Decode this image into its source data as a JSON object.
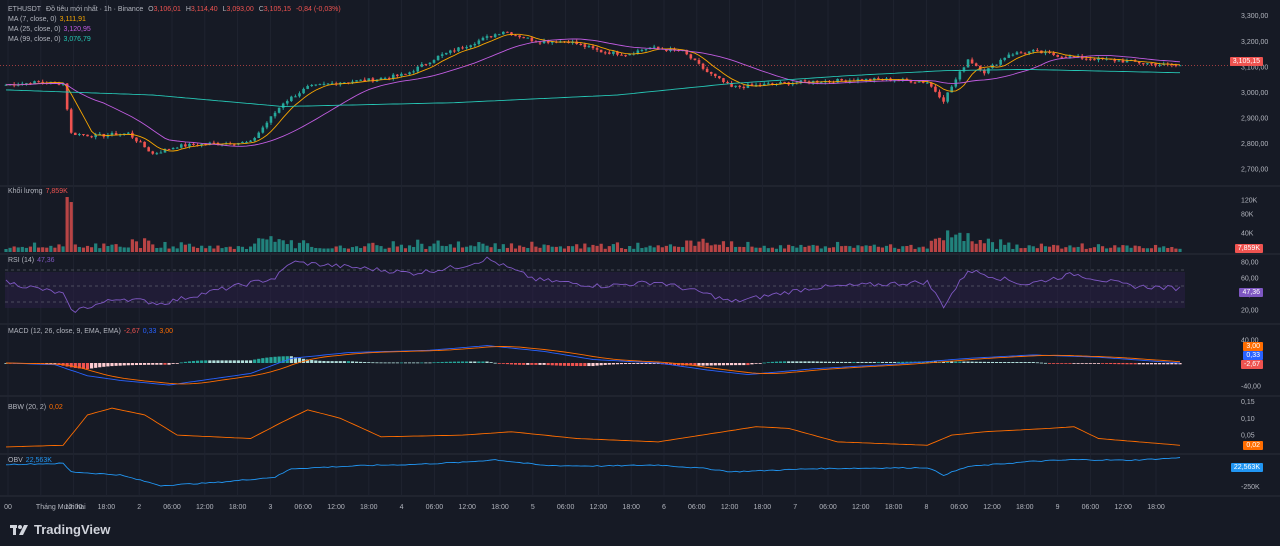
{
  "header": {
    "symbol": "ETHUSDT",
    "interval_text": "Đồ tiêu mới nhất · 1h · Binance",
    "ohlc": [
      {
        "k": "O",
        "v": "3,106,01"
      },
      {
        "k": "H",
        "v": "3,114,40"
      },
      {
        "k": "L",
        "v": "3,093,00"
      },
      {
        "k": "C",
        "v": "3,105,15"
      }
    ],
    "change": "-0,84 (-0,03%)"
  },
  "ma_labels": [
    {
      "name": "MA (7, close, 0)",
      "value": "3,111,91",
      "color": "#f7a600"
    },
    {
      "name": "MA (25, close, 0)",
      "value": "3,120,95",
      "color": "#c05ce0"
    },
    {
      "name": "MA (99, close, 0)",
      "value": "3,076,79",
      "color": "#26c6b5"
    }
  ],
  "volume_label": {
    "name": "Khối lượng",
    "value": "7,859K"
  },
  "rsi_label": {
    "name": "RSI (14)",
    "value": "47,36"
  },
  "macd_label": {
    "name": "MACD (12, 26, close, 9, EMA, EMA)",
    "hist": "-2,67",
    "macd": "0,33",
    "signal": "3,00"
  },
  "bbw_label": {
    "name": "BBW (20, 2)",
    "value": "0,02"
  },
  "obv_label": {
    "name": "OBV",
    "value": "22,563K"
  },
  "axes": {
    "price_ticks": [
      "3,300,00",
      "3,200,00",
      "3,100,00",
      "3,000,00",
      "2,900,00",
      "2,800,00",
      "2,700,00"
    ],
    "volume_ticks": [
      "120K",
      "80K",
      "40K"
    ],
    "rsi_ticks": [
      "80,00",
      "60,00",
      "40,00",
      "20,00"
    ],
    "macd_ticks": [
      "40,00",
      "-40,00"
    ],
    "bbw_ticks": [
      "0,15",
      "0,10",
      "0,05"
    ],
    "obv_ticks": [
      "-250K"
    ],
    "time_ticks": [
      "00",
      "Tháng Mười hai",
      "12:00",
      "18:00",
      "2",
      "06:00",
      "12:00",
      "18:00",
      "3",
      "06:00",
      "12:00",
      "18:00",
      "4",
      "06:00",
      "12:00",
      "18:00",
      "5",
      "06:00",
      "12:00",
      "18:00",
      "6",
      "06:00",
      "12:00",
      "18:00",
      "7",
      "06:00",
      "12:00",
      "18:00",
      "8",
      "06:00",
      "12:00",
      "18:00",
      "9",
      "06:00",
      "12:00",
      "18:00"
    ]
  },
  "tags": {
    "price": "3,105,15",
    "volume": "7,859K",
    "rsi": "47,36",
    "macd_signal": "3,00",
    "macd_line": "0,33",
    "macd_hist": "-2,67",
    "bbw": "0,02",
    "obv": "22,563K"
  },
  "brand": "TradingView",
  "colors": {
    "bg": "#161a25",
    "up": "#26a69a",
    "down": "#ef5350",
    "ma7": "#f7a600",
    "ma25": "#c05ce0",
    "ma99": "#26c6b5",
    "rsi": "#7e57c2",
    "macd": "#2962ff",
    "signal": "#ff6d00",
    "bbw": "#ff6d00",
    "obv": "#2196f3"
  },
  "chart_data": {
    "type": "candlestick",
    "price_ylim": [
      2650,
      3330
    ],
    "price_anchors": [
      [
        0,
        3030
      ],
      [
        8,
        3040
      ],
      [
        14,
        3035
      ],
      [
        16,
        2840
      ],
      [
        22,
        2830
      ],
      [
        30,
        2840
      ],
      [
        36,
        2760
      ],
      [
        42,
        2790
      ],
      [
        50,
        2800
      ],
      [
        60,
        2805
      ],
      [
        68,
        2960
      ],
      [
        74,
        3020
      ],
      [
        82,
        3040
      ],
      [
        90,
        3050
      ],
      [
        98,
        3070
      ],
      [
        106,
        3140
      ],
      [
        114,
        3190
      ],
      [
        122,
        3240
      ],
      [
        130,
        3200
      ],
      [
        138,
        3200
      ],
      [
        146,
        3160
      ],
      [
        152,
        3150
      ],
      [
        158,
        3175
      ],
      [
        166,
        3160
      ],
      [
        172,
        3080
      ],
      [
        178,
        3020
      ],
      [
        186,
        3030
      ],
      [
        194,
        3040
      ],
      [
        202,
        3045
      ],
      [
        210,
        3050
      ],
      [
        218,
        3050
      ],
      [
        226,
        3040
      ],
      [
        230,
        2970
      ],
      [
        236,
        3130
      ],
      [
        240,
        3080
      ],
      [
        246,
        3150
      ],
      [
        252,
        3160
      ],
      [
        260,
        3140
      ],
      [
        268,
        3130
      ],
      [
        276,
        3120
      ],
      [
        282,
        3110
      ],
      [
        288,
        3105
      ]
    ],
    "ma99_anchors": [
      [
        0,
        3010
      ],
      [
        36,
        2990
      ],
      [
        68,
        2945
      ],
      [
        110,
        2960
      ],
      [
        150,
        2990
      ],
      [
        178,
        3035
      ],
      [
        206,
        3065
      ],
      [
        230,
        3085
      ],
      [
        250,
        3090
      ],
      [
        288,
        3077
      ]
    ],
    "rsi_ylim": [
      10,
      90
    ],
    "rsi_anchors": [
      [
        0,
        55
      ],
      [
        14,
        40
      ],
      [
        16,
        18
      ],
      [
        28,
        35
      ],
      [
        38,
        28
      ],
      [
        52,
        45
      ],
      [
        66,
        60
      ],
      [
        70,
        80
      ],
      [
        88,
        72
      ],
      [
        100,
        66
      ],
      [
        112,
        75
      ],
      [
        118,
        84
      ],
      [
        130,
        58
      ],
      [
        146,
        50
      ],
      [
        160,
        55
      ],
      [
        172,
        40
      ],
      [
        178,
        30
      ],
      [
        198,
        48
      ],
      [
        226,
        55
      ],
      [
        230,
        25
      ],
      [
        236,
        70
      ],
      [
        250,
        52
      ],
      [
        262,
        65
      ],
      [
        276,
        50
      ],
      [
        288,
        47
      ]
    ],
    "macd_ylim": [
      -50,
      50
    ],
    "macd_anchors": [
      [
        0,
        0
      ],
      [
        12,
        -3
      ],
      [
        20,
        -22
      ],
      [
        28,
        -30
      ],
      [
        40,
        -38
      ],
      [
        48,
        -30
      ],
      [
        60,
        -18
      ],
      [
        70,
        8
      ],
      [
        84,
        18
      ],
      [
        104,
        22
      ],
      [
        118,
        30
      ],
      [
        132,
        20
      ],
      [
        144,
        6
      ],
      [
        160,
        0
      ],
      [
        172,
        -12
      ],
      [
        182,
        -20
      ],
      [
        198,
        -10
      ],
      [
        218,
        -2
      ],
      [
        236,
        8
      ],
      [
        252,
        14
      ],
      [
        268,
        10
      ],
      [
        288,
        0
      ]
    ],
    "bbw_ylim": [
      0,
      0.16
    ],
    "bbw_anchors": [
      [
        0,
        0.015
      ],
      [
        14,
        0.02
      ],
      [
        20,
        0.11
      ],
      [
        26,
        0.13
      ],
      [
        34,
        0.11
      ],
      [
        42,
        0.05
      ],
      [
        60,
        0.04
      ],
      [
        68,
        0.09
      ],
      [
        74,
        0.125
      ],
      [
        82,
        0.1
      ],
      [
        92,
        0.045
      ],
      [
        112,
        0.05
      ],
      [
        124,
        0.06
      ],
      [
        140,
        0.04
      ],
      [
        160,
        0.03
      ],
      [
        176,
        0.06
      ],
      [
        184,
        0.075
      ],
      [
        192,
        0.07
      ],
      [
        204,
        0.03
      ],
      [
        226,
        0.02
      ],
      [
        232,
        0.05
      ],
      [
        240,
        0.06
      ],
      [
        256,
        0.07
      ],
      [
        262,
        0.075
      ],
      [
        268,
        0.04
      ],
      [
        288,
        0.02
      ]
    ],
    "obv_ylim": [
      -320,
      40
    ],
    "obv_anchors": [
      [
        0,
        -40
      ],
      [
        14,
        -30
      ],
      [
        16,
        -110
      ],
      [
        28,
        -140
      ],
      [
        38,
        -240
      ],
      [
        52,
        -210
      ],
      [
        66,
        -160
      ],
      [
        70,
        -80
      ],
      [
        88,
        -50
      ],
      [
        100,
        -40
      ],
      [
        112,
        -20
      ],
      [
        120,
        5
      ],
      [
        132,
        -50
      ],
      [
        146,
        -55
      ],
      [
        160,
        -45
      ],
      [
        172,
        -80
      ],
      [
        178,
        -110
      ],
      [
        198,
        -80
      ],
      [
        226,
        -70
      ],
      [
        230,
        -140
      ],
      [
        236,
        -60
      ],
      [
        252,
        -10
      ],
      [
        262,
        5
      ],
      [
        276,
        0
      ],
      [
        288,
        22.563
      ]
    ]
  }
}
